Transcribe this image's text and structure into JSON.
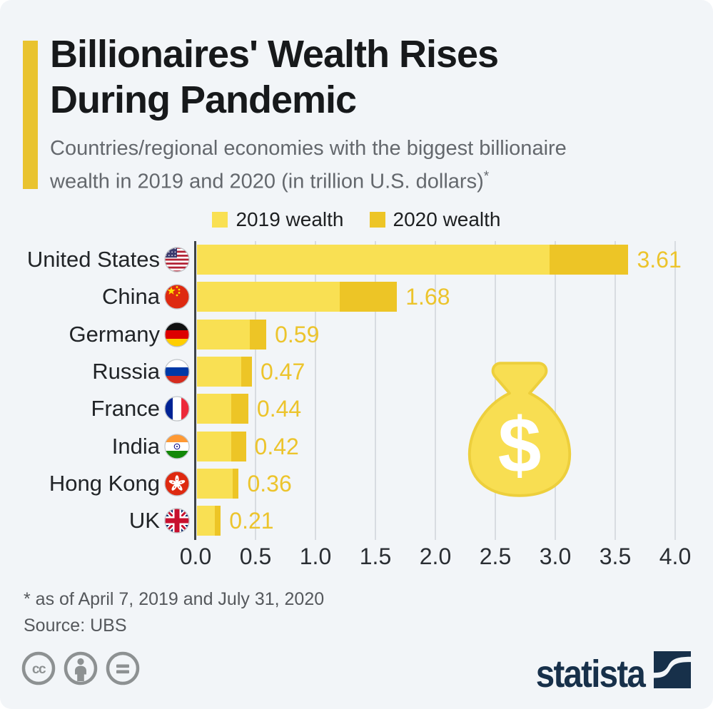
{
  "page": {
    "background": "#F2F5F8",
    "accent_color": "#E9C32F"
  },
  "header": {
    "title_line1": "Billionaires' Wealth Rises",
    "title_line2": "During Pandemic",
    "subtitle_line1": "Countries/regional economies with the biggest billionaire",
    "subtitle_line2": "wealth in 2019 and 2020 (in trillion U.S. dollars)",
    "footnote_marker": "*"
  },
  "legend": {
    "items": [
      {
        "label": "2019 wealth",
        "color": "#F9E053"
      },
      {
        "label": "2020 wealth",
        "color": "#EDC526"
      }
    ]
  },
  "chart_data": {
    "type": "bar",
    "orientation": "horizontal",
    "title": "Billionaires' Wealth Rises During Pandemic",
    "subtitle": "Countries/regional economies with the biggest billionaire wealth in 2019 and 2020 (in trillion U.S. dollars)*",
    "categories": [
      "United States",
      "China",
      "Germany",
      "Russia",
      "France",
      "India",
      "Hong Kong",
      "UK"
    ],
    "flags": [
      "us",
      "cn",
      "de",
      "ru",
      "fr",
      "in",
      "hk",
      "gb"
    ],
    "series": [
      {
        "name": "2019 wealth",
        "color": "#F9E053",
        "values": [
          2.95,
          1.2,
          0.45,
          0.38,
          0.3,
          0.3,
          0.31,
          0.16
        ]
      },
      {
        "name": "2020 wealth",
        "color": "#EDC526",
        "values": [
          3.61,
          1.68,
          0.59,
          0.47,
          0.44,
          0.42,
          0.36,
          0.21
        ]
      }
    ],
    "value_labels": [
      "3.61",
      "1.68",
      "0.59",
      "0.47",
      "0.44",
      "0.42",
      "0.36",
      "0.21"
    ],
    "value_label_color": "#ECC42C",
    "x_ticks": [
      "0.0",
      "0.5",
      "1.0",
      "1.5",
      "2.0",
      "2.5",
      "3.0",
      "3.5",
      "4.0"
    ],
    "xlim": [
      0.0,
      4.0
    ],
    "xlabel": "",
    "ylabel": "",
    "grid": true,
    "legend_position": "top"
  },
  "decorations": {
    "money_bag_symbol": "$"
  },
  "footer": {
    "footnote": "* as of April 7, 2019 and July 31, 2020",
    "source": "Source: UBS",
    "license_icons": [
      "cc",
      "by",
      "nd"
    ],
    "brand": "statista"
  }
}
